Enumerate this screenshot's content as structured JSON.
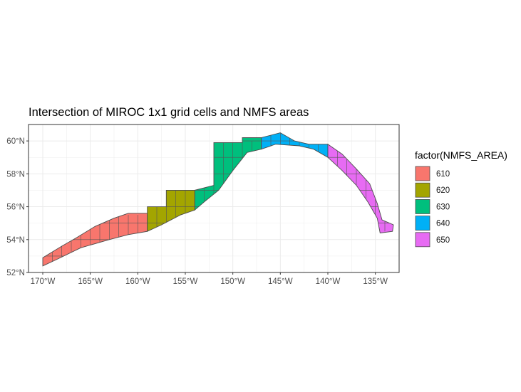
{
  "title": "Intersection of MIROC 1x1 grid cells and NMFS areas",
  "legend": {
    "title": "factor(NMFS_AREA)",
    "placement": "right",
    "items": [
      {
        "label": "610",
        "color": "#F8766D"
      },
      {
        "label": "620",
        "color": "#A3A500"
      },
      {
        "label": "630",
        "color": "#00BF7D"
      },
      {
        "label": "640",
        "color": "#00B0F6"
      },
      {
        "label": "650",
        "color": "#E76BF3"
      }
    ]
  },
  "axes": {
    "x_ticks": [
      "170°W",
      "165°W",
      "160°W",
      "155°W",
      "150°W",
      "145°W",
      "140°W",
      "135°W"
    ],
    "x_values": [
      -170,
      -165,
      -160,
      -155,
      -150,
      -145,
      -140,
      -135
    ],
    "y_ticks": [
      "52°N",
      "54°N",
      "56°N",
      "58°N",
      "60°N"
    ],
    "y_values": [
      52,
      54,
      56,
      58,
      60
    ],
    "xlim": [
      -171.5,
      -132.5
    ],
    "ylim": [
      52,
      61
    ],
    "grid": true
  },
  "chart_data": {
    "type": "map",
    "title": "Intersection of MIROC 1x1 grid cells and NMFS areas",
    "legend_title": "factor(NMFS_AREA)",
    "regions": [
      {
        "area": "610",
        "lon_range": [
          -170,
          -159
        ],
        "lat_range": [
          52.5,
          55.5
        ]
      },
      {
        "area": "620",
        "lon_range": [
          -159,
          -154
        ],
        "lat_range": [
          54.5,
          57
        ]
      },
      {
        "area": "630",
        "lon_range": [
          -154,
          -147
        ],
        "lat_range": [
          55.5,
          60
        ]
      },
      {
        "area": "640",
        "lon_range": [
          -147,
          -140
        ],
        "lat_range": [
          59,
          60.5
        ]
      },
      {
        "area": "650",
        "lon_range": [
          -140,
          -133
        ],
        "lat_range": [
          54.5,
          60
        ]
      }
    ]
  }
}
